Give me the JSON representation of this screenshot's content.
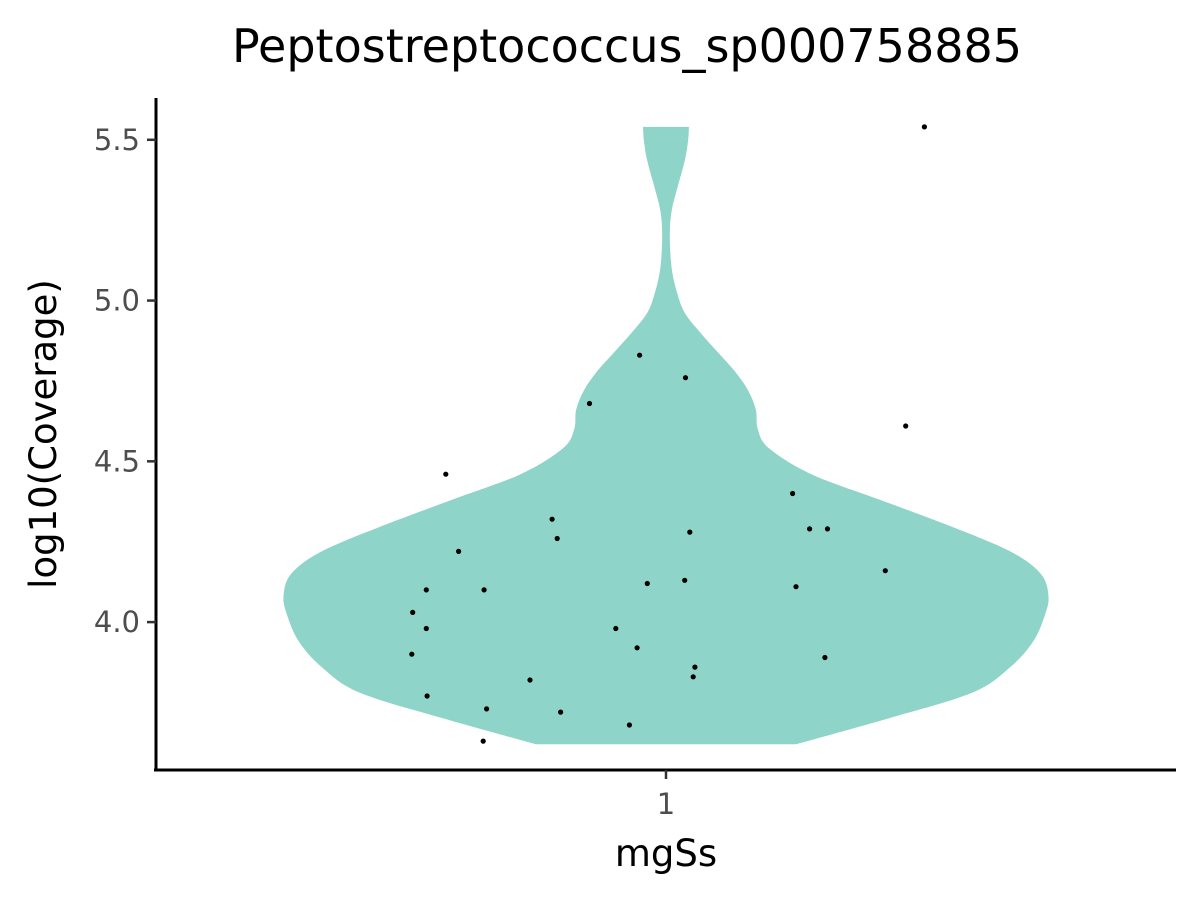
{
  "chart_data": {
    "type": "violin",
    "title": "Peptostreptococcus_sp000758885",
    "xlabel": "mgSs",
    "ylabel": "log10(Coverage)",
    "categories": [
      "1"
    ],
    "x_tick_labels": [
      "1"
    ],
    "y_ticks": [
      4.0,
      4.5,
      5.0,
      5.5
    ],
    "y_tick_labels": [
      "4.0",
      "4.5",
      "5.0",
      "5.5"
    ],
    "ylim": [
      3.54,
      5.63
    ],
    "fill_color": "#8fd4c8",
    "point_color": "#000000",
    "violin_range": [
      3.62,
      5.54
    ],
    "density_profile": [
      {
        "y": 3.62,
        "w": 0.34
      },
      {
        "y": 3.7,
        "w": 0.58
      },
      {
        "y": 3.78,
        "w": 0.8
      },
      {
        "y": 3.86,
        "w": 0.9
      },
      {
        "y": 3.94,
        "w": 0.96
      },
      {
        "y": 4.02,
        "w": 0.99
      },
      {
        "y": 4.08,
        "w": 1.0
      },
      {
        "y": 4.15,
        "w": 0.98
      },
      {
        "y": 4.22,
        "w": 0.9
      },
      {
        "y": 4.3,
        "w": 0.74
      },
      {
        "y": 4.38,
        "w": 0.56
      },
      {
        "y": 4.46,
        "w": 0.38
      },
      {
        "y": 4.54,
        "w": 0.27
      },
      {
        "y": 4.6,
        "w": 0.24
      },
      {
        "y": 4.66,
        "w": 0.235
      },
      {
        "y": 4.72,
        "w": 0.215
      },
      {
        "y": 4.78,
        "w": 0.18
      },
      {
        "y": 4.84,
        "w": 0.135
      },
      {
        "y": 4.9,
        "w": 0.09
      },
      {
        "y": 4.96,
        "w": 0.05
      },
      {
        "y": 5.02,
        "w": 0.03
      },
      {
        "y": 5.1,
        "w": 0.015
      },
      {
        "y": 5.2,
        "w": 0.01
      },
      {
        "y": 5.28,
        "w": 0.015
      },
      {
        "y": 5.36,
        "w": 0.032
      },
      {
        "y": 5.44,
        "w": 0.05
      },
      {
        "y": 5.5,
        "w": 0.058
      },
      {
        "y": 5.54,
        "w": 0.06
      }
    ],
    "points": [
      {
        "x": 1.304,
        "y": 5.54
      },
      {
        "x": 0.969,
        "y": 4.83
      },
      {
        "x": 1.023,
        "y": 4.76
      },
      {
        "x": 0.91,
        "y": 4.68
      },
      {
        "x": 1.282,
        "y": 4.61
      },
      {
        "x": 0.741,
        "y": 4.46
      },
      {
        "x": 1.149,
        "y": 4.4
      },
      {
        "x": 0.866,
        "y": 4.32
      },
      {
        "x": 1.19,
        "y": 4.29
      },
      {
        "x": 1.169,
        "y": 4.29
      },
      {
        "x": 1.028,
        "y": 4.28
      },
      {
        "x": 0.872,
        "y": 4.26
      },
      {
        "x": 0.756,
        "y": 4.22
      },
      {
        "x": 1.258,
        "y": 4.16
      },
      {
        "x": 1.022,
        "y": 4.13
      },
      {
        "x": 0.978,
        "y": 4.12
      },
      {
        "x": 1.153,
        "y": 4.11
      },
      {
        "x": 0.718,
        "y": 4.1
      },
      {
        "x": 0.786,
        "y": 4.1
      },
      {
        "x": 0.702,
        "y": 4.03
      },
      {
        "x": 0.941,
        "y": 3.98
      },
      {
        "x": 0.718,
        "y": 3.98
      },
      {
        "x": 0.966,
        "y": 3.92
      },
      {
        "x": 0.701,
        "y": 3.9
      },
      {
        "x": 1.187,
        "y": 3.89
      },
      {
        "x": 1.034,
        "y": 3.86
      },
      {
        "x": 1.032,
        "y": 3.83
      },
      {
        "x": 0.84,
        "y": 3.82
      },
      {
        "x": 0.719,
        "y": 3.77
      },
      {
        "x": 0.789,
        "y": 3.73
      },
      {
        "x": 0.876,
        "y": 3.72
      },
      {
        "x": 0.957,
        "y": 3.68
      },
      {
        "x": 0.785,
        "y": 3.63
      }
    ]
  }
}
